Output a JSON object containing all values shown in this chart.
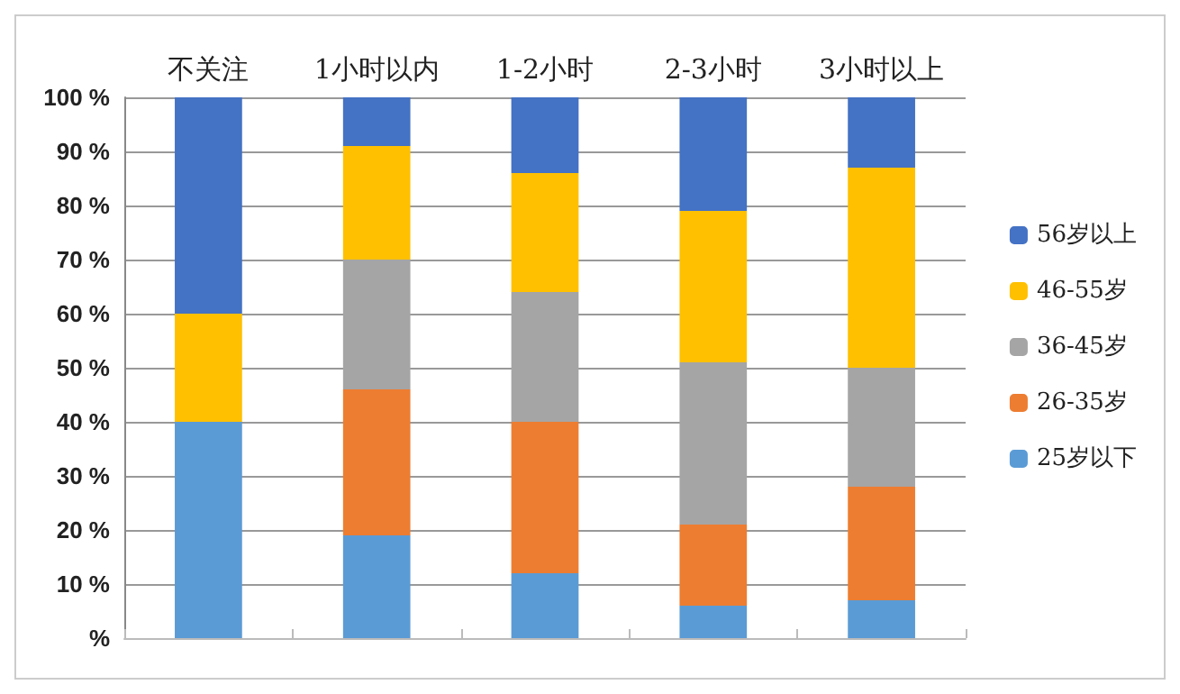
{
  "chart_data": {
    "type": "bar",
    "stacked": true,
    "categories": [
      "不关注",
      "1小时以内",
      "1-2小时",
      "2-3小时",
      "3小时以上"
    ],
    "series": [
      {
        "name": "25岁以下",
        "color": "#5b9bd5",
        "values": [
          40,
          19,
          12,
          6,
          7
        ]
      },
      {
        "name": "26-35岁",
        "color": "#ed7d31",
        "values": [
          0,
          27,
          28,
          15,
          21
        ]
      },
      {
        "name": "36-45岁",
        "color": "#a5a5a5",
        "values": [
          0,
          24,
          24,
          30,
          22
        ]
      },
      {
        "name": "46-55岁",
        "color": "#ffc000",
        "values": [
          20,
          21,
          22,
          28,
          37
        ]
      },
      {
        "name": "56岁以上",
        "color": "#4472c4",
        "values": [
          40,
          9,
          14,
          21,
          13
        ]
      }
    ],
    "ylim": [
      0,
      100
    ],
    "yticks": [
      {
        "value": 0,
        "label": "%"
      },
      {
        "value": 10,
        "label": "10 %"
      },
      {
        "value": 20,
        "label": "20 %"
      },
      {
        "value": 30,
        "label": "30 %"
      },
      {
        "value": 40,
        "label": "40 %"
      },
      {
        "value": 50,
        "label": "50 %"
      },
      {
        "value": 60,
        "label": "60 %"
      },
      {
        "value": 70,
        "label": "70 %"
      },
      {
        "value": 80,
        "label": "80 %"
      },
      {
        "value": 90,
        "label": "90 %"
      },
      {
        "value": 100,
        "label": "100 %"
      }
    ],
    "grid": "y",
    "legend": "right"
  }
}
